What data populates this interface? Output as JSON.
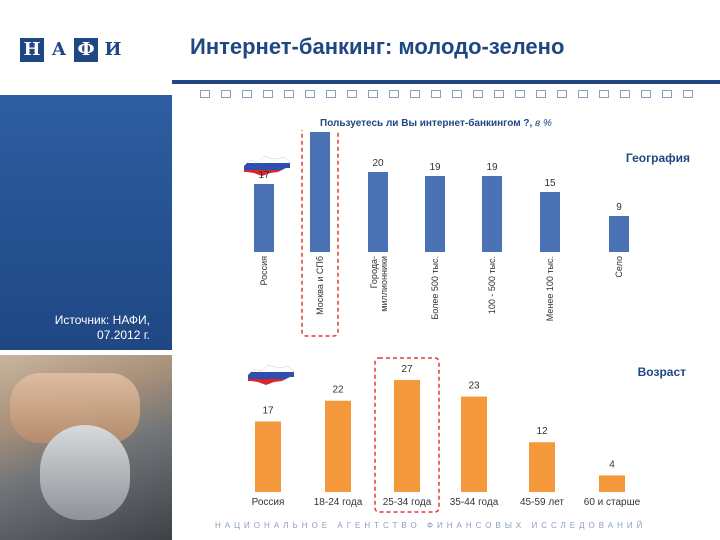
{
  "header": {
    "logo_letters": [
      "Н",
      "А",
      "Ф",
      "И"
    ],
    "title": "Интернет-банкинг: молодо-зелено"
  },
  "source": {
    "line1": "Источник: НАФИ,",
    "line2": "07.2012 г."
  },
  "question": {
    "text": "Пользуетесь ли Вы интернет-банкингом ?,",
    "unit": "в %"
  },
  "footer": "НАЦИОНАЛЬНОЕ АГЕНТСТВО ФИНАНСОВЫХ ИССЛЕДОВАНИЙ",
  "colors": {
    "brand": "#1f4783",
    "geo_bar": "#4a72b4",
    "age_bar": "#f4993b",
    "highlight": "#e23a3a"
  },
  "icons": [
    "russia-map-icon",
    "russia-map-icon"
  ],
  "chart_data": [
    {
      "type": "bar",
      "title": "География",
      "categories": [
        "Россия",
        "Москва и СПб",
        "Города-миллионники",
        "Более 500 тыс.",
        "100 - 500 тыс.",
        "Менее 100 тыс.",
        "Село"
      ],
      "values": [
        17,
        30,
        20,
        19,
        19,
        15,
        9
      ],
      "highlight_index": 1,
      "ylim": [
        0,
        30
      ]
    },
    {
      "type": "bar",
      "title": "Возраст",
      "categories": [
        "Россия",
        "18-24 года",
        "25-34 года",
        "35-44 года",
        "45-59 лет",
        "60 и старше"
      ],
      "values": [
        17,
        22,
        27,
        23,
        12,
        4
      ],
      "highlight_index": 2,
      "ylim": [
        0,
        27
      ]
    }
  ]
}
